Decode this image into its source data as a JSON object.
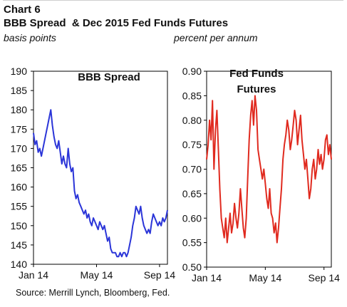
{
  "chart_label": "Chart 6",
  "title": "BBB Spread  & Dec 2015 Fed Funds Futures",
  "source": "Source: Merrill Lynch, Bloomberg, Fed.",
  "colors": {
    "bbb": "#2b35d8",
    "fed": "#e02a1f",
    "axis": "#000000"
  },
  "chart_data": [
    {
      "type": "line",
      "title": "BBB Spread",
      "ylabel": "basis points",
      "ylim": [
        140,
        190
      ],
      "yticks": [
        "190",
        "185",
        "180",
        "175",
        "170",
        "165",
        "160",
        "155",
        "150",
        "145",
        "140"
      ],
      "xlim": [
        0,
        8.5
      ],
      "xticks": [
        {
          "x": 0,
          "label": "Jan 14"
        },
        {
          "x": 4,
          "label": "May 14"
        },
        {
          "x": 8,
          "label": "Sep 14"
        }
      ],
      "series": [
        {
          "x": [
            0,
            0.1,
            0.2,
            0.3,
            0.4,
            0.5,
            0.6,
            0.7,
            0.8,
            0.9,
            1.0,
            1.1,
            1.2,
            1.3,
            1.4,
            1.5,
            1.6,
            1.7,
            1.8,
            1.9,
            2.0,
            2.1,
            2.2,
            2.3,
            2.4,
            2.5,
            2.6,
            2.7,
            2.8,
            2.9,
            3.0,
            3.1,
            3.2,
            3.3,
            3.4,
            3.5,
            3.6,
            3.7,
            3.8,
            3.9,
            4.0,
            4.1,
            4.2,
            4.3,
            4.4,
            4.5,
            4.6,
            4.7,
            4.8,
            4.9,
            5.0,
            5.1,
            5.2,
            5.3,
            5.4,
            5.5,
            5.6,
            5.7,
            5.8,
            5.9,
            6.0,
            6.1,
            6.2,
            6.3,
            6.4,
            6.5,
            6.6,
            6.7,
            6.8,
            6.9,
            7.0,
            7.1,
            7.2,
            7.3,
            7.4,
            7.5,
            7.6,
            7.7,
            7.8,
            7.9,
            8.0,
            8.1,
            8.2,
            8.3,
            8.4,
            8.5
          ],
          "values": [
            174,
            171,
            172,
            169,
            170,
            168,
            170,
            172,
            174,
            176,
            178,
            180,
            176,
            173,
            171,
            170,
            172,
            169,
            166,
            168,
            166,
            165,
            170,
            166,
            164,
            165,
            159,
            157,
            158,
            156,
            155,
            154,
            153,
            154,
            152,
            153,
            151,
            150,
            152,
            151,
            150,
            149,
            151,
            150,
            149,
            150,
            148,
            146,
            147,
            144,
            143,
            143,
            143,
            142,
            142,
            143,
            142,
            143,
            143,
            142,
            143,
            145,
            147,
            150,
            152,
            155,
            154,
            153,
            155,
            152,
            150,
            149,
            148,
            149,
            148,
            151,
            153,
            152,
            151,
            150,
            151,
            150,
            152,
            151,
            152,
            154
          ]
        }
      ]
    },
    {
      "type": "line",
      "title": "Fed Funds Futures",
      "ylabel": "percent per annum",
      "ylim": [
        0.5,
        0.9
      ],
      "yticks": [
        "0.90",
        "0.85",
        "0.80",
        "0.75",
        "0.70",
        "0.65",
        "0.60",
        "0.55",
        "0.50"
      ],
      "xlim": [
        0,
        8.5
      ],
      "xticks": [
        {
          "x": 0,
          "label": "Jan 14"
        },
        {
          "x": 4,
          "label": "May 14"
        },
        {
          "x": 8,
          "label": "Sep 14"
        }
      ],
      "series": [
        {
          "x": [
            0,
            0.1,
            0.2,
            0.3,
            0.4,
            0.5,
            0.6,
            0.7,
            0.8,
            0.9,
            1.0,
            1.1,
            1.2,
            1.3,
            1.4,
            1.5,
            1.6,
            1.7,
            1.8,
            1.9,
            2.0,
            2.1,
            2.2,
            2.3,
            2.4,
            2.5,
            2.6,
            2.7,
            2.8,
            2.9,
            3.0,
            3.1,
            3.2,
            3.3,
            3.4,
            3.5,
            3.6,
            3.7,
            3.8,
            3.9,
            4.0,
            4.1,
            4.2,
            4.3,
            4.4,
            4.5,
            4.6,
            4.7,
            4.8,
            4.9,
            5.0,
            5.1,
            5.2,
            5.3,
            5.4,
            5.5,
            5.6,
            5.7,
            5.8,
            5.9,
            6.0,
            6.1,
            6.2,
            6.3,
            6.4,
            6.5,
            6.6,
            6.7,
            6.8,
            6.9,
            7.0,
            7.1,
            7.2,
            7.3,
            7.4,
            7.5,
            7.6,
            7.7,
            7.8,
            7.9,
            8.0,
            8.1,
            8.2,
            8.3,
            8.4,
            8.5
          ],
          "values": [
            0.72,
            0.75,
            0.8,
            0.76,
            0.84,
            0.7,
            0.78,
            0.82,
            0.74,
            0.66,
            0.6,
            0.58,
            0.56,
            0.6,
            0.55,
            0.58,
            0.61,
            0.57,
            0.59,
            0.63,
            0.6,
            0.58,
            0.61,
            0.66,
            0.62,
            0.58,
            0.56,
            0.6,
            0.68,
            0.76,
            0.81,
            0.84,
            0.79,
            0.85,
            0.82,
            0.74,
            0.72,
            0.7,
            0.68,
            0.7,
            0.67,
            0.64,
            0.62,
            0.66,
            0.61,
            0.6,
            0.57,
            0.59,
            0.55,
            0.58,
            0.62,
            0.66,
            0.72,
            0.75,
            0.77,
            0.8,
            0.78,
            0.74,
            0.76,
            0.79,
            0.82,
            0.8,
            0.75,
            0.78,
            0.81,
            0.76,
            0.73,
            0.7,
            0.72,
            0.68,
            0.64,
            0.66,
            0.7,
            0.72,
            0.68,
            0.7,
            0.74,
            0.71,
            0.73,
            0.7,
            0.72,
            0.76,
            0.77,
            0.73,
            0.75,
            0.72
          ]
        }
      ]
    }
  ]
}
